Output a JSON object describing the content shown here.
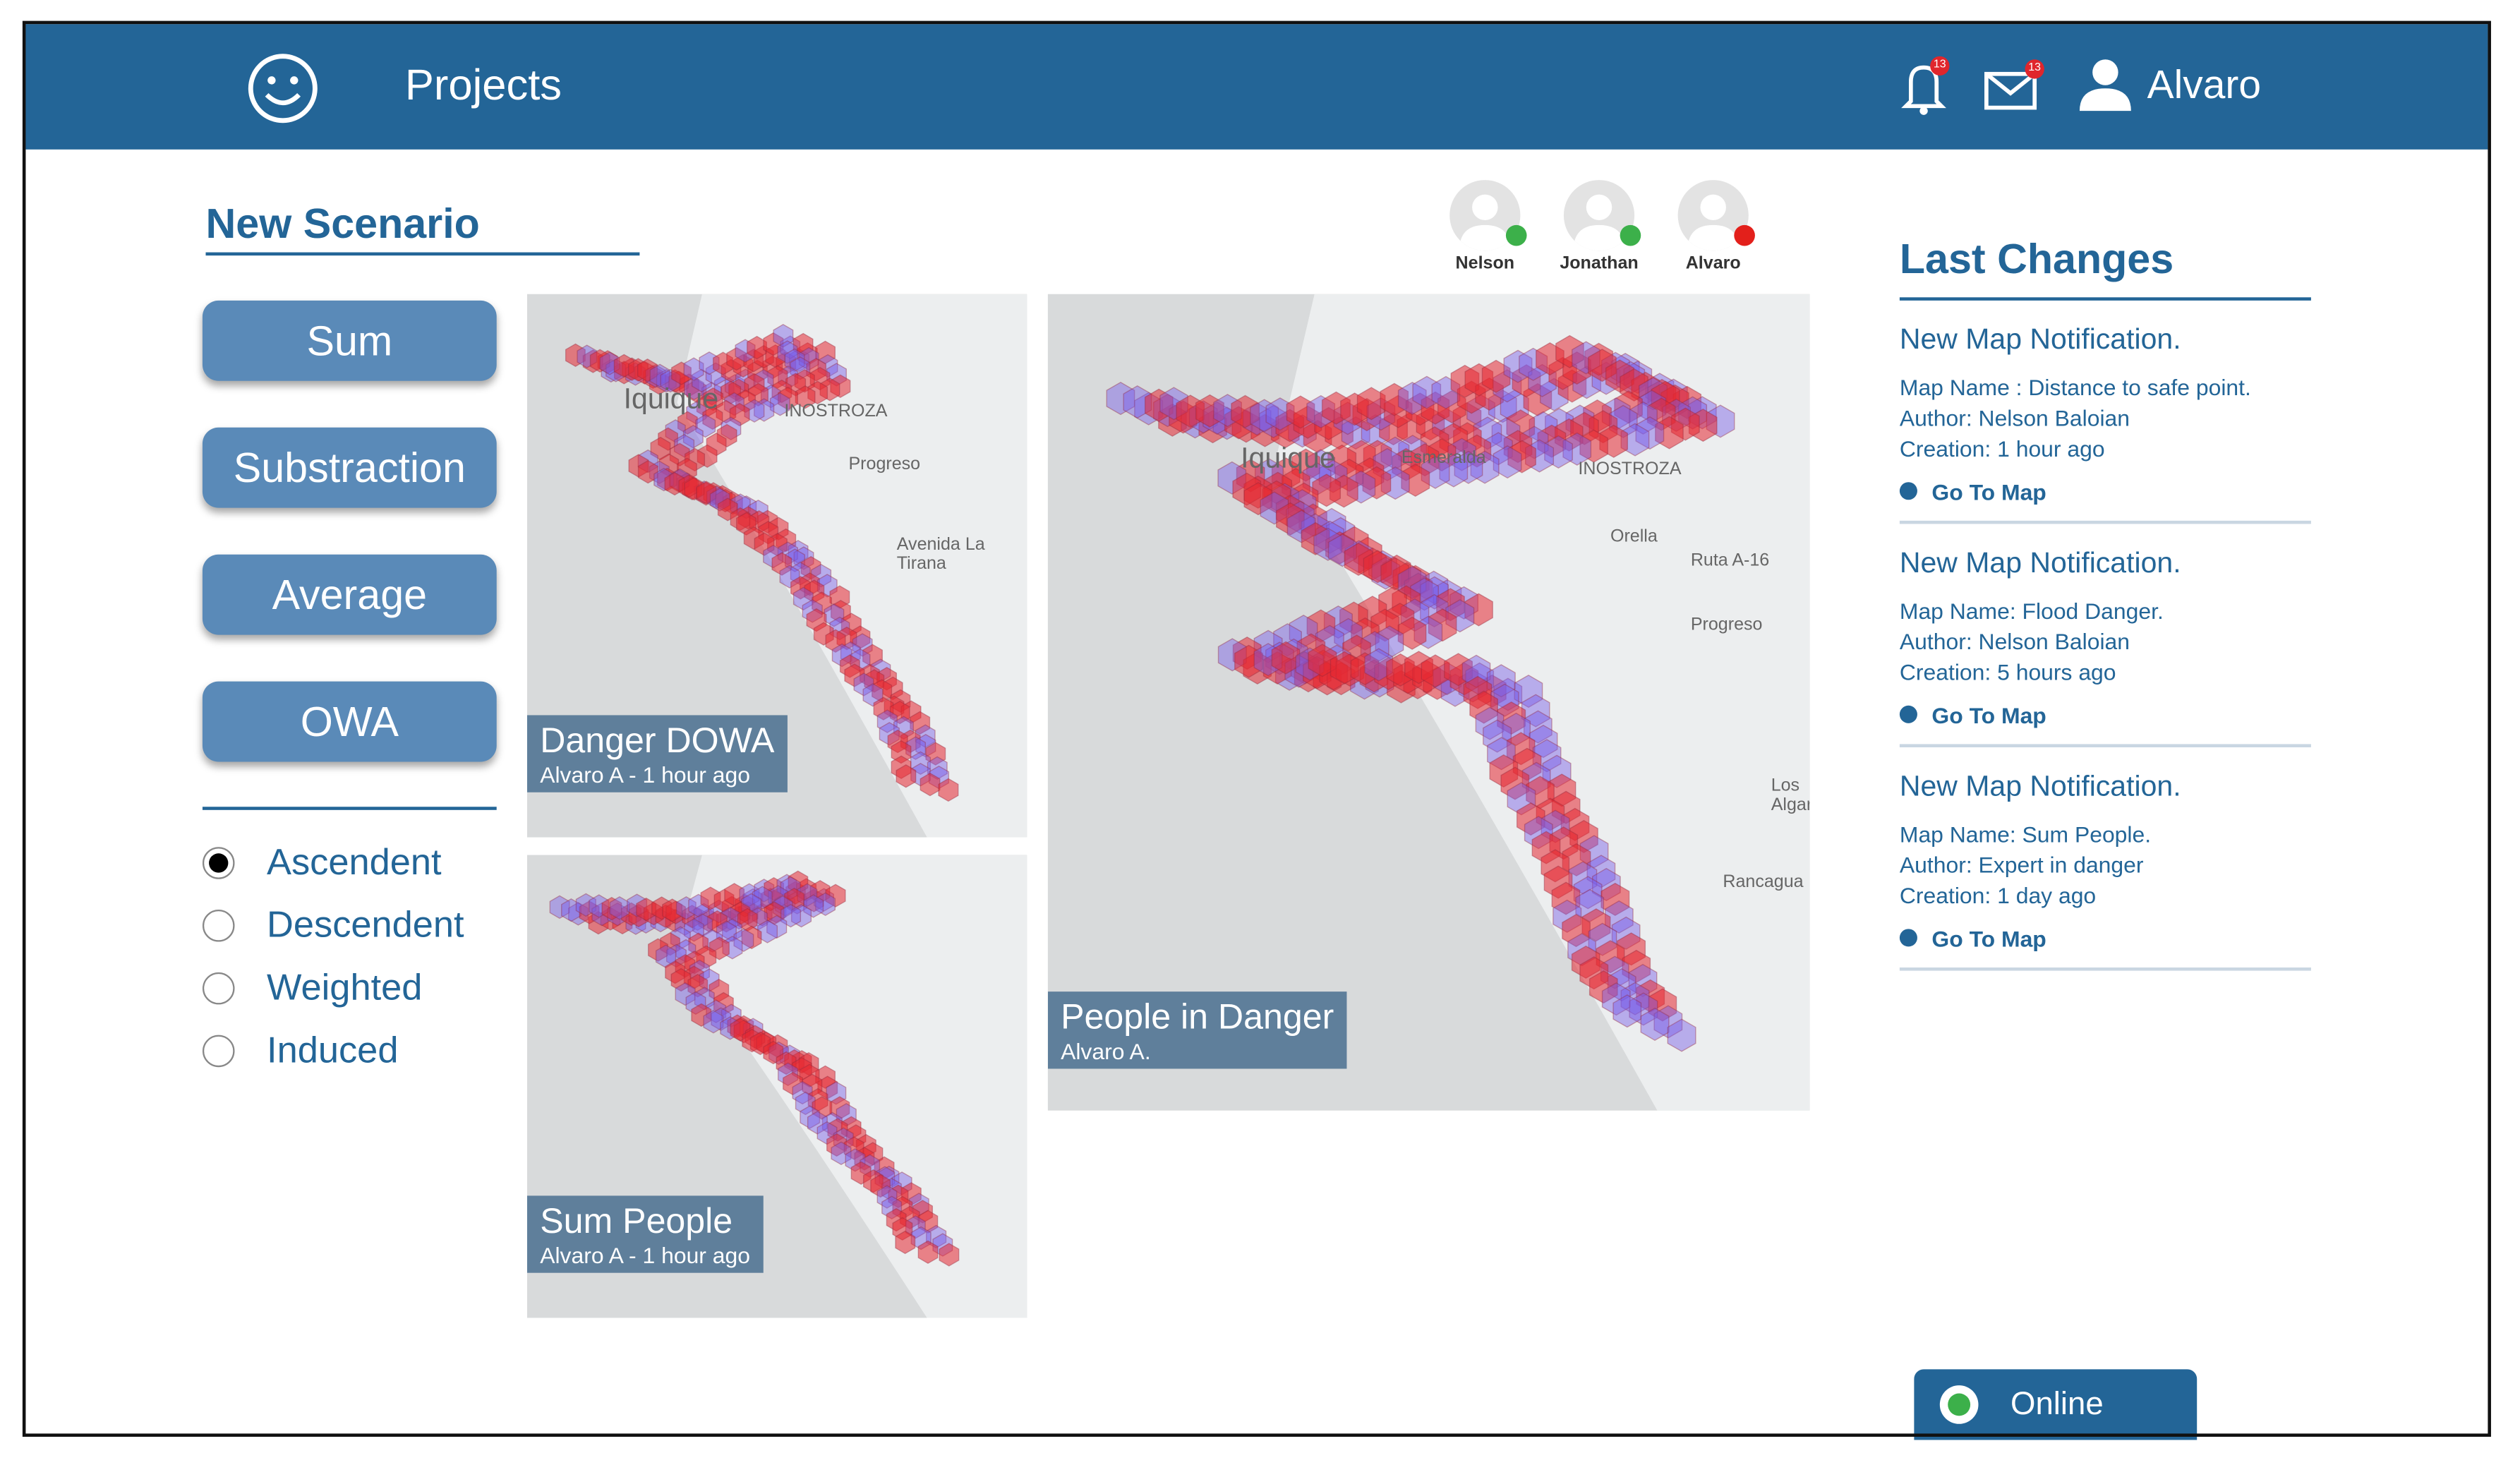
{
  "header": {
    "title": "Projects",
    "user": "Alvaro",
    "notification_count": "13",
    "message_count": "13"
  },
  "scenario": {
    "title": "New Scenario",
    "operations": [
      "Sum",
      "Substraction",
      "Average",
      "OWA"
    ],
    "options": [
      {
        "label": "Ascendent",
        "selected": true
      },
      {
        "label": "Descendent",
        "selected": false
      },
      {
        "label": "Weighted",
        "selected": false
      },
      {
        "label": "Induced",
        "selected": false
      }
    ]
  },
  "collaborators": [
    {
      "name": "Nelson",
      "status": "online"
    },
    {
      "name": "Jonathan",
      "status": "online"
    },
    {
      "name": "Alvaro",
      "status": "offline"
    }
  ],
  "maps": [
    {
      "title": "Danger DOWA",
      "subtitle": "Alvaro A - 1 hour ago",
      "labels": [
        "Iquique",
        "INOSTROZA",
        "Progreso",
        "Avenida La Tirana"
      ]
    },
    {
      "title": "Sum People",
      "subtitle": "Alvaro A - 1 hour ago",
      "labels": []
    },
    {
      "title": "People in Danger",
      "subtitle": "Alvaro A.",
      "labels": [
        "Iquique",
        "Esmeralda",
        "INOSTROZA",
        "Orella",
        "Ruta A-16",
        "Progreso",
        "Los Algarrobos",
        "Rancagua"
      ]
    }
  ],
  "last_changes": {
    "title": "Last Changes",
    "items": [
      {
        "heading": "New Map Notification.",
        "map_name": "Map Name : Distance to safe point.",
        "author": "Author: Nelson Baloian",
        "creation": "Creation: 1 hour ago",
        "link": "Go To Map"
      },
      {
        "heading": "New Map Notification.",
        "map_name": "Map Name: Flood Danger.",
        "author": "Author:  Nelson Baloian",
        "creation": "Creation: 5 hours ago",
        "link": "Go To Map"
      },
      {
        "heading": "New Map Notification.",
        "map_name": "Map Name: Sum People.",
        "author": "Author: Expert in danger",
        "creation": "Creation: 1 day ago",
        "link": "Go To Map"
      }
    ]
  },
  "status": "Online"
}
